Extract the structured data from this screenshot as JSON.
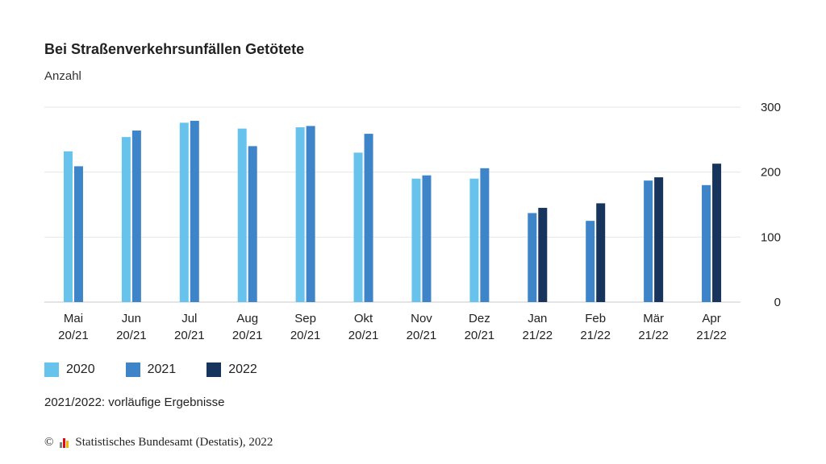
{
  "chart_data": {
    "type": "bar",
    "title": "Bei Straßenverkehrsunfällen Getötete",
    "subtitle": "Anzahl",
    "categories": [
      [
        "Mai",
        "20/21"
      ],
      [
        "Jun",
        "20/21"
      ],
      [
        "Jul",
        "20/21"
      ],
      [
        "Aug",
        "20/21"
      ],
      [
        "Sep",
        "20/21"
      ],
      [
        "Okt",
        "20/21"
      ],
      [
        "Nov",
        "20/21"
      ],
      [
        "Dez",
        "20/21"
      ],
      [
        "Jan",
        "21/22"
      ],
      [
        "Feb",
        "21/22"
      ],
      [
        "Mär",
        "21/22"
      ],
      [
        "Apr",
        "21/22"
      ]
    ],
    "series": [
      {
        "name": "2020",
        "color": "#67c3ec",
        "values": [
          232,
          254,
          276,
          267,
          269,
          230,
          190,
          190,
          null,
          null,
          null,
          null
        ]
      },
      {
        "name": "2021",
        "color": "#3d85c8",
        "values": [
          209,
          264,
          279,
          240,
          271,
          259,
          195,
          206,
          137,
          125,
          187,
          180
        ]
      },
      {
        "name": "2022",
        "color": "#17355c",
        "values": [
          null,
          null,
          null,
          null,
          null,
          null,
          null,
          null,
          145,
          152,
          192,
          213
        ]
      }
    ],
    "yticks": [
      0,
      100,
      200,
      300
    ],
    "ylim": [
      0,
      300
    ],
    "grid": true,
    "axis_position": "right",
    "legend_position": "bottom-left"
  },
  "note": "2021/2022: vorläufige Ergebnisse",
  "footer": {
    "copyright": "©",
    "source": "Statistisches Bundesamt (Destatis), 2022"
  }
}
